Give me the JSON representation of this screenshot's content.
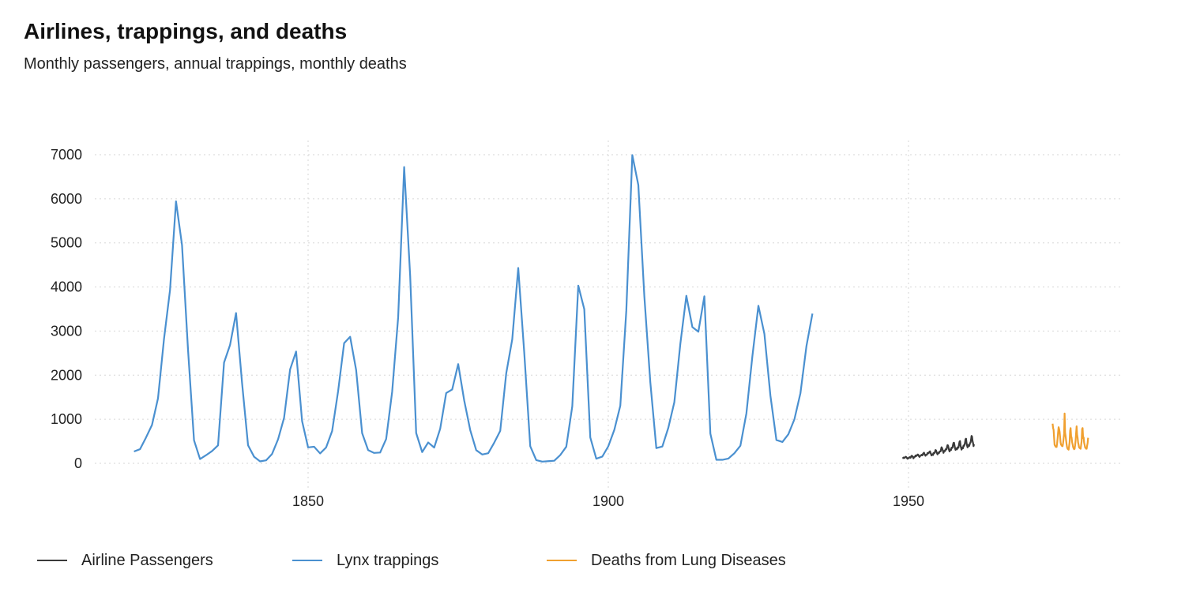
{
  "chart_data": {
    "type": "line",
    "title": "Airlines, trappings, and deaths",
    "subtitle": "Monthly passengers, annual trappings, monthly deaths",
    "xlabel": "",
    "ylabel": "",
    "xlim": [
      1815,
      1985
    ],
    "ylim": [
      -400,
      7300
    ],
    "x_ticks": [
      1850,
      1900,
      1950
    ],
    "y_ticks": [
      0,
      1000,
      2000,
      3000,
      4000,
      5000,
      6000,
      7000
    ],
    "grid": true,
    "legend_position": "bottom",
    "series": [
      {
        "name": "Airline Passengers",
        "color": "#3a3a3a",
        "x_start": 1949,
        "x_step": 0.0833333,
        "values": [
          112,
          118,
          132,
          129,
          121,
          135,
          148,
          148,
          136,
          119,
          104,
          118,
          115,
          126,
          141,
          135,
          125,
          149,
          170,
          170,
          158,
          133,
          114,
          140,
          145,
          150,
          178,
          163,
          172,
          178,
          199,
          199,
          184,
          162,
          146,
          166,
          171,
          180,
          193,
          181,
          183,
          218,
          230,
          242,
          209,
          191,
          172,
          194,
          196,
          196,
          236,
          235,
          229,
          243,
          264,
          272,
          237,
          211,
          180,
          201,
          204,
          188,
          235,
          227,
          234,
          264,
          302,
          293,
          259,
          229,
          203,
          229,
          242,
          233,
          267,
          269,
          270,
          315,
          364,
          347,
          312,
          274,
          237,
          278,
          284,
          277,
          317,
          313,
          318,
          374,
          413,
          405,
          355,
          306,
          271,
          306,
          315,
          301,
          356,
          348,
          355,
          422,
          465,
          467,
          404,
          347,
          305,
          336,
          340,
          318,
          362,
          348,
          363,
          435,
          491,
          505,
          404,
          359,
          310,
          337,
          360,
          342,
          406,
          396,
          420,
          472,
          548,
          559,
          463,
          407,
          362,
          405,
          417,
          391,
          419,
          461,
          472,
          535,
          622,
          606,
          508,
          461,
          390,
          432
        ]
      },
      {
        "name": "Lynx trappings",
        "color": "#4a90d0",
        "x_start": 1821,
        "x_step": 1,
        "values": [
          269,
          321,
          585,
          871,
          1475,
          2821,
          3928,
          5943,
          4950,
          2577,
          523,
          98,
          184,
          279,
          409,
          2285,
          2685,
          3409,
          1824,
          409,
          151,
          45,
          68,
          213,
          546,
          1033,
          2129,
          2536,
          957,
          361,
          377,
          225,
          360,
          731,
          1638,
          2725,
          2871,
          2119,
          684,
          299,
          236,
          245,
          552,
          1623,
          3311,
          6721,
          4254,
          687,
          255,
          473,
          358,
          784,
          1594,
          1676,
          2251,
          1426,
          756,
          299,
          201,
          229,
          469,
          736,
          2042,
          2811,
          4431,
          2511,
          389,
          73,
          39,
          49,
          59,
          188,
          377,
          1292,
          4031,
          3495,
          587,
          105,
          153,
          387,
          758,
          1307,
          3465,
          6991,
          6313,
          3794,
          1836,
          345,
          382,
          808,
          1388,
          2713,
          3800,
          3091,
          2985,
          3790,
          674,
          81,
          80,
          108,
          229,
          399,
          1132,
          2432,
          3574,
          2935,
          1537,
          529,
          485,
          662,
          1000,
          1590,
          2657,
          3396
        ]
      },
      {
        "name": "Deaths from Lung Diseases",
        "color": "#f0a030",
        "x_start": 1974,
        "x_step": 0.0833333,
        "values": [
          900,
          800,
          760,
          580,
          420,
          400,
          380,
          370,
          370,
          450,
          560,
          700,
          820,
          780,
          720,
          600,
          470,
          420,
          410,
          390,
          390,
          460,
          560,
          670,
          1130,
          700,
          620,
          520,
          430,
          360,
          330,
          320,
          310,
          390,
          480,
          740,
          800,
          620,
          580,
          480,
          430,
          370,
          340,
          320,
          330,
          410,
          520,
          690,
          840,
          650,
          580,
          470,
          420,
          360,
          350,
          340,
          330,
          410,
          500,
          780,
          800,
          570,
          590,
          470,
          420,
          360,
          350,
          330,
          330,
          400,
          460,
          580
        ]
      }
    ]
  }
}
